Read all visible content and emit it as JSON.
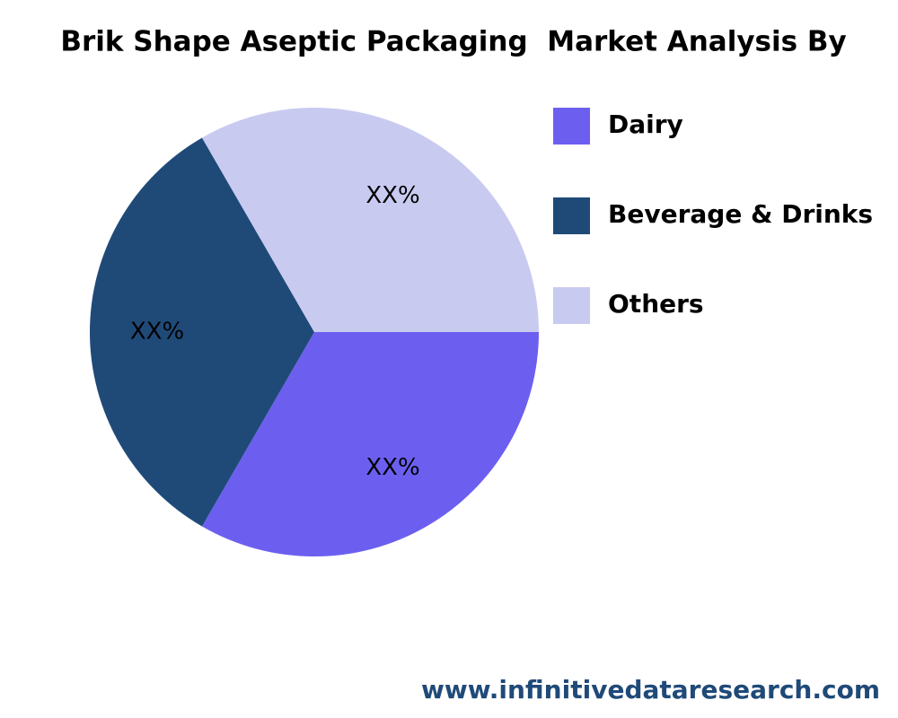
{
  "chart_data": {
    "type": "pie",
    "title": "Brik Shape Aseptic Packaging  Market Analysis By",
    "categories": [
      "Dairy",
      "Beverage & Drinks",
      "Others"
    ],
    "values": [
      33.3,
      33.3,
      33.3
    ],
    "value_labels": [
      "XX%",
      "XX%",
      "XX%"
    ],
    "colors": [
      "#6c5ff0",
      "#1f4a78",
      "#c9caf0"
    ],
    "legend": "right",
    "source": "www.infinitivedataresearch.com"
  }
}
